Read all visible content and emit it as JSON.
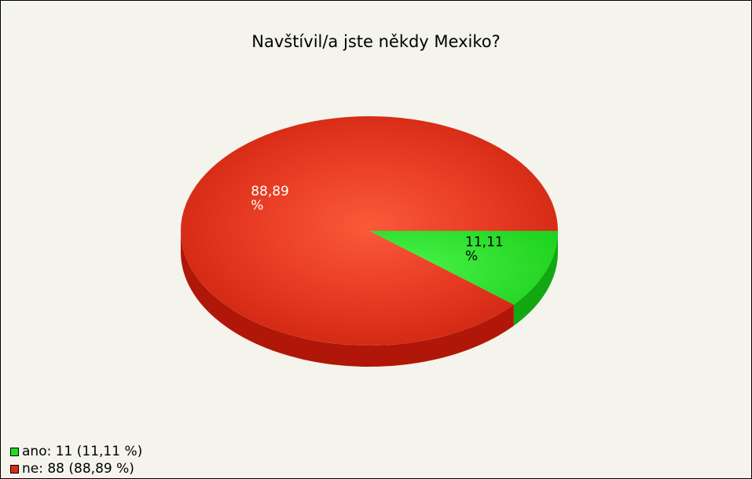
{
  "chart_data": {
    "type": "pie",
    "title": "Navštívil/a jste někdy Mexiko?",
    "categories": [
      "ano",
      "ne"
    ],
    "values": [
      11,
      88
    ],
    "percent_labels": [
      "11,11\n%",
      "88,89\n%"
    ],
    "legend_entries": [
      "ano: 11 (11,11 %)",
      "ne: 88 (88,89 %)"
    ],
    "colors": [
      "#22dd22",
      "#dd2a16"
    ],
    "legend_position": "bottom-left",
    "style": "3d"
  }
}
